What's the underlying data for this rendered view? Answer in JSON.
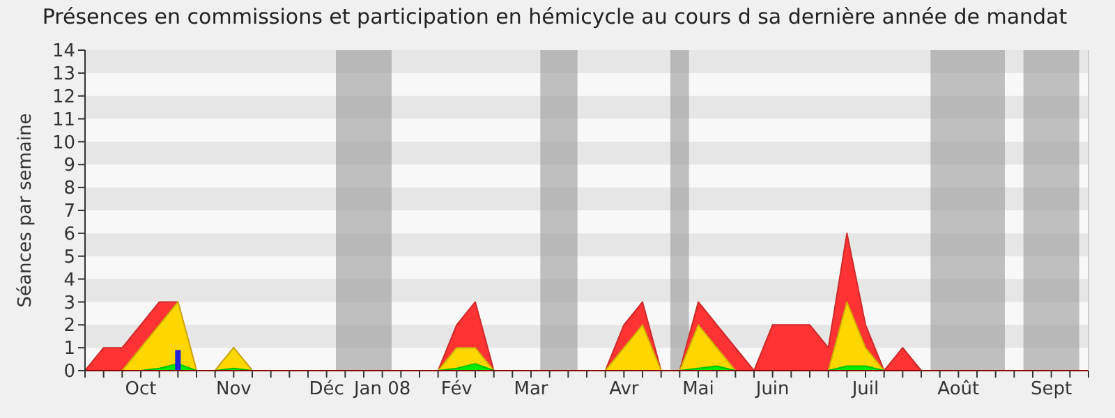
{
  "chart_data": {
    "type": "area",
    "title": "Présences en commissions et participation en hémicycle au cours d sa dernière année de mandat",
    "ylabel": "Séances par semaine",
    "categories": [
      null,
      null,
      null,
      "Oct",
      null,
      null,
      null,
      null,
      "Nov",
      null,
      null,
      null,
      null,
      "Déc",
      null,
      null,
      "Jan 08",
      null,
      null,
      null,
      "Fév",
      null,
      null,
      null,
      "Mar",
      null,
      null,
      null,
      null,
      "Avr",
      null,
      null,
      null,
      "Mai",
      null,
      null,
      null,
      "Juin",
      null,
      null,
      null,
      null,
      "Juil",
      null,
      null,
      null,
      null,
      "Août",
      null,
      null,
      null,
      null,
      "Sept",
      null,
      null
    ],
    "series": [
      {
        "color": "#ff3333",
        "values": [
          0,
          1,
          1,
          2,
          3,
          3,
          0,
          0,
          1,
          0,
          0,
          0,
          0,
          0,
          0,
          0,
          0,
          0,
          0,
          0,
          2,
          3,
          0,
          0,
          0,
          0,
          0,
          0,
          0,
          2,
          3,
          0,
          0,
          3,
          2,
          1,
          0,
          2,
          2,
          2,
          1,
          6,
          2,
          0,
          1,
          0,
          0,
          0,
          0,
          0,
          0,
          0,
          0,
          0,
          0
        ]
      },
      {
        "color": "#ffd700",
        "values": [
          0,
          0,
          0,
          1,
          2,
          3,
          0,
          0,
          1,
          0,
          0,
          0,
          0,
          0,
          0,
          0,
          0,
          0,
          0,
          0,
          1,
          1,
          0,
          0,
          0,
          0,
          0,
          0,
          0,
          1,
          2,
          0,
          0,
          2,
          1,
          0,
          0,
          0,
          0,
          0,
          0,
          3,
          1,
          0,
          0,
          0,
          0,
          0,
          0,
          0,
          0,
          0,
          0,
          0,
          0
        ]
      },
      {
        "color": "#00ee00",
        "values": [
          0,
          0,
          0,
          0,
          0.1,
          0.3,
          0,
          0,
          0.1,
          0,
          0,
          0,
          0,
          0,
          0,
          0,
          0,
          0,
          0,
          0,
          0.1,
          0.3,
          0,
          0,
          0,
          0,
          0,
          0,
          0,
          0,
          0,
          0,
          0,
          0.1,
          0.2,
          0,
          0,
          0,
          0,
          0,
          0,
          0.2,
          0.2,
          0,
          0,
          0,
          0,
          0,
          0,
          0,
          0,
          0,
          0,
          0,
          0
        ]
      },
      {
        "type": "bar",
        "color": "#2222dd",
        "values": [
          null,
          null,
          null,
          null,
          null,
          0.9,
          null,
          null,
          null,
          null,
          null,
          null,
          null,
          null,
          null,
          null,
          null,
          null,
          null,
          null,
          null,
          null,
          null,
          null,
          null,
          null,
          null,
          null,
          null,
          null,
          null,
          null,
          null,
          null,
          null,
          null,
          null,
          null,
          null,
          null,
          null,
          null,
          null,
          null,
          null,
          null,
          null,
          null,
          null,
          null,
          null,
          null,
          null,
          null,
          null
        ]
      }
    ],
    "ylim": [
      0,
      14
    ],
    "yticks": [
      0,
      1,
      2,
      3,
      4,
      5,
      6,
      7,
      8,
      9,
      10,
      11,
      12,
      13,
      14
    ]
  }
}
